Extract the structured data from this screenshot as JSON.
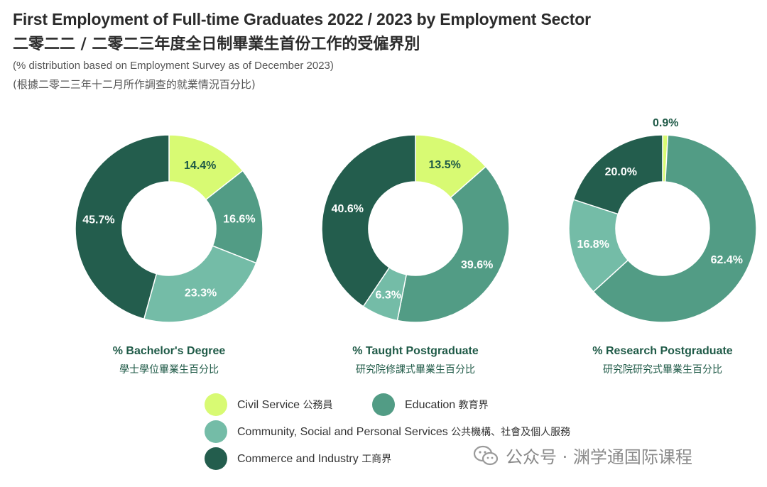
{
  "header": {
    "title_en": "First Employment of Full-time Graduates 2022 / 2023 by Employment Sector",
    "title_zh": "二零二二 / 二零二三年度全日制畢業生首份工作的受僱界別",
    "subtitle_en": "(% distribution based on Employment Survey as of December 2023)",
    "subtitle_zh": "(根據二零二三年十二月所作調查的就業情況百分比)"
  },
  "colors": {
    "civil_service": "#d8fa73",
    "education": "#529c85",
    "community": "#74bca7",
    "commerce": "#235d4d",
    "label_dark": "#1f5a47"
  },
  "chart_data": [
    {
      "type": "pie",
      "title": "% Bachelor's Degree",
      "title_zh": "學士學位畢業生百分比",
      "categories": [
        "Civil Service",
        "Education",
        "Community, Social and Personal Services",
        "Commerce and Industry"
      ],
      "values": [
        14.4,
        16.6,
        23.3,
        45.7
      ],
      "labels": [
        "14.4%",
        "16.6%",
        "23.3%",
        "45.7%"
      ]
    },
    {
      "type": "pie",
      "title": "% Taught Postgraduate",
      "title_zh": "研究院修課式畢業生百分比",
      "categories": [
        "Civil Service",
        "Education",
        "Community, Social and Personal Services",
        "Commerce and Industry"
      ],
      "values": [
        13.5,
        39.6,
        6.3,
        40.6
      ],
      "labels": [
        "13.5%",
        "39.6%",
        "6.3%",
        "40.6%"
      ]
    },
    {
      "type": "pie",
      "title": "% Research Postgraduate",
      "title_zh": "研究院研究式畢業生百分比",
      "categories": [
        "Civil Service",
        "Education",
        "Community, Social and Personal Services",
        "Commerce and Industry"
      ],
      "values": [
        0.9,
        62.4,
        16.8,
        20.0
      ],
      "labels": [
        "0.9%",
        "62.4%",
        "16.8%",
        "20.0%"
      ]
    }
  ],
  "legend": [
    {
      "key": "civil_service",
      "label_en": "Civil Service",
      "label_zh": "公務員"
    },
    {
      "key": "education",
      "label_en": "Education",
      "label_zh": "教育界"
    },
    {
      "key": "community",
      "label_en": "Community, Social and Personal Services",
      "label_zh": "公共機構、社會及個人服務"
    },
    {
      "key": "commerce",
      "label_en": "Commerce and Industry",
      "label_zh": "工商界"
    }
  ],
  "watermark": {
    "text": "公众号 · 渊学通国际课程",
    "icon": "wechat-icon"
  }
}
